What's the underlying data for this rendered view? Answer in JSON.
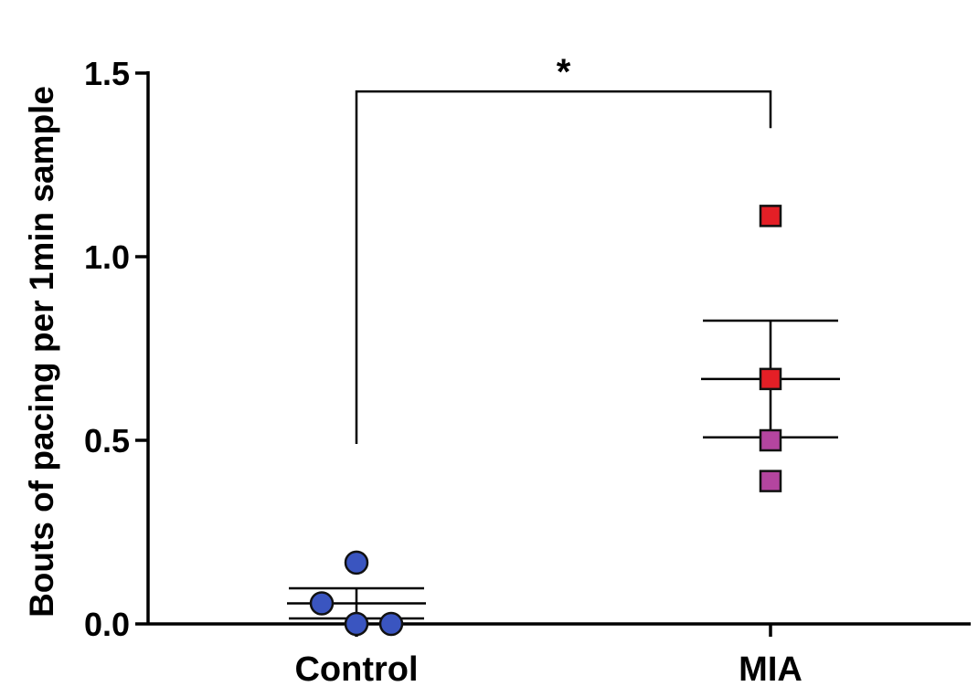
{
  "chart_data": {
    "type": "scatter",
    "ylabel": "Bouts of pacing per 1min sample",
    "ylim": [
      0,
      1.5
    ],
    "yticks": [
      0.0,
      0.5,
      1.0,
      1.5
    ],
    "ytick_labels": [
      "0.0",
      "0.5",
      "1.0",
      "1.5"
    ],
    "categories": [
      "Control",
      "MIA"
    ],
    "groups": [
      {
        "category": "Control",
        "marker": "circle",
        "points": [
          {
            "value": 0.167,
            "color": "#3a55c0"
          },
          {
            "value": 0.056,
            "color": "#3a55c0"
          },
          {
            "value": 0.0,
            "color": "#3a55c0"
          },
          {
            "value": 0.0,
            "color": "#3a55c0"
          }
        ],
        "mean": 0.056,
        "sem_upper": 0.097,
        "sem_lower": 0.015
      },
      {
        "category": "MIA",
        "marker": "square",
        "points": [
          {
            "value": 1.111,
            "color": "#e41f26"
          },
          {
            "value": 0.667,
            "color": "#e41f26"
          },
          {
            "value": 0.5,
            "color": "#b4459f"
          },
          {
            "value": 0.389,
            "color": "#b4459f"
          }
        ],
        "mean": 0.667,
        "sem_upper": 0.826,
        "sem_lower": 0.508
      }
    ],
    "significance": {
      "between": [
        "Control",
        "MIA"
      ],
      "label": "*",
      "bracket_y": 1.45,
      "left_drop_to": 0.49,
      "right_drop_to": 1.35
    },
    "grid": false,
    "legend": "none"
  }
}
